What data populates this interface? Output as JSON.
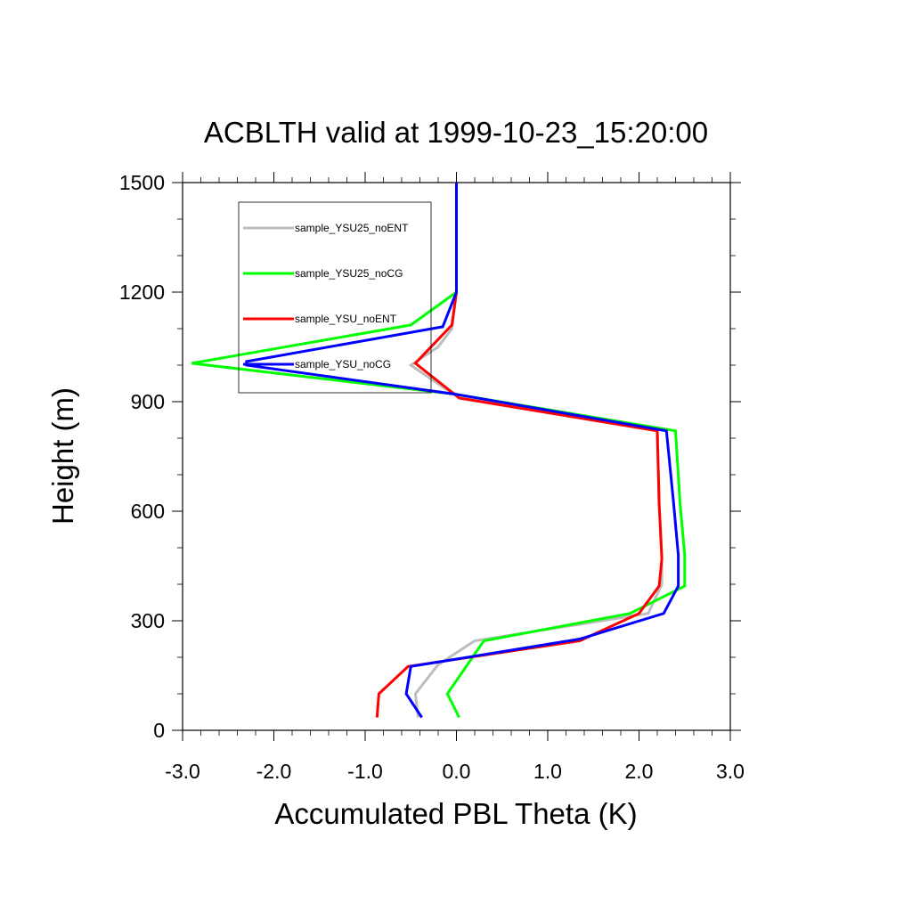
{
  "chart_data": {
    "type": "line",
    "title": "ACBLTH valid at 1999-10-23_15:20:00",
    "xlabel": "Accumulated PBL Theta (K)",
    "ylabel": "Height (m)",
    "xlim": [
      -3.0,
      3.0
    ],
    "ylim": [
      0,
      1500
    ],
    "x_ticks": [
      -3.0,
      -2.0,
      -1.0,
      0.0,
      1.0,
      2.0,
      3.0
    ],
    "x_tick_labels": [
      "-3.0",
      "-2.0",
      "-1.0",
      "0.0",
      "1.0",
      "2.0",
      "3.0"
    ],
    "y_ticks": [
      0,
      300,
      600,
      900,
      1200,
      1500
    ],
    "y_tick_labels": [
      "0",
      "300",
      "600",
      "900",
      "1200",
      "1500"
    ],
    "grid": false,
    "legend_position": "top-left",
    "series": [
      {
        "name": "sample_YSU25_noENT",
        "color": "#bdbdbd",
        "points": [
          [
            -0.42,
            35
          ],
          [
            -0.45,
            100
          ],
          [
            -0.2,
            180
          ],
          [
            0.2,
            245
          ],
          [
            2.1,
            320
          ],
          [
            2.25,
            400
          ],
          [
            2.25,
            480
          ],
          [
            2.22,
            620
          ],
          [
            2.2,
            820
          ],
          [
            0.0,
            920
          ],
          [
            -0.12,
            935
          ],
          [
            -0.5,
            1000
          ],
          [
            -0.2,
            1050
          ],
          [
            -0.05,
            1100
          ],
          [
            0.0,
            1200
          ],
          [
            0.0,
            1300
          ],
          [
            0.0,
            1500
          ]
        ]
      },
      {
        "name": "sample_YSU25_noCG",
        "color": "#00ff00",
        "points": [
          [
            0.03,
            35
          ],
          [
            -0.1,
            100
          ],
          [
            0.3,
            245
          ],
          [
            1.9,
            320
          ],
          [
            2.5,
            395
          ],
          [
            2.5,
            480
          ],
          [
            2.45,
            620
          ],
          [
            2.4,
            820
          ],
          [
            0.0,
            920
          ],
          [
            -2.9,
            1005
          ],
          [
            -0.5,
            1110
          ],
          [
            0.0,
            1200
          ],
          [
            0.0,
            1500
          ]
        ]
      },
      {
        "name": "sample_YSU_noENT",
        "color": "#ff0000",
        "points": [
          [
            -0.87,
            35
          ],
          [
            -0.85,
            100
          ],
          [
            -0.53,
            175
          ],
          [
            1.35,
            245
          ],
          [
            2.0,
            320
          ],
          [
            2.22,
            395
          ],
          [
            2.25,
            470
          ],
          [
            2.22,
            620
          ],
          [
            2.2,
            820
          ],
          [
            0.03,
            910
          ],
          [
            -0.45,
            1005
          ],
          [
            -0.05,
            1110
          ],
          [
            0.0,
            1200
          ],
          [
            0.0,
            1500
          ]
        ]
      },
      {
        "name": "sample_YSU_noCG",
        "color": "#0000ff",
        "points": [
          [
            -0.38,
            35
          ],
          [
            -0.55,
            100
          ],
          [
            -0.5,
            175
          ],
          [
            1.35,
            250
          ],
          [
            2.27,
            320
          ],
          [
            2.43,
            395
          ],
          [
            2.43,
            480
          ],
          [
            2.38,
            620
          ],
          [
            2.3,
            820
          ],
          [
            0.0,
            920
          ],
          [
            -2.3,
            1000
          ],
          [
            -2.3,
            1010
          ],
          [
            -0.15,
            1105
          ],
          [
            0.0,
            1200
          ],
          [
            0.0,
            1500
          ]
        ]
      }
    ]
  }
}
